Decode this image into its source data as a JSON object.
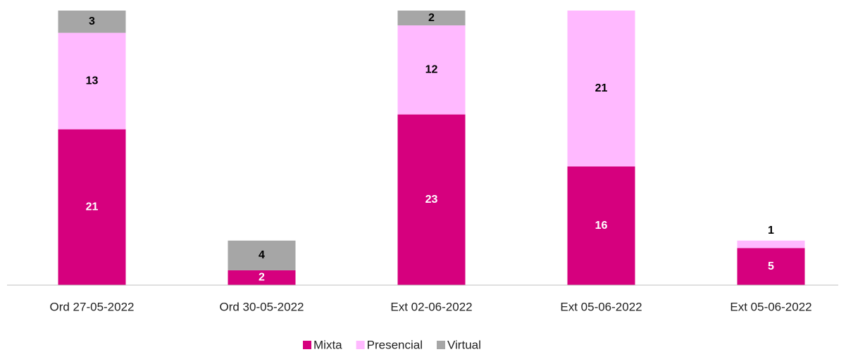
{
  "chart_data": {
    "type": "stacked_bar",
    "categories": [
      "Ord 27-05-2022",
      "Ord 30-05-2022",
      "Ext 02-06-2022",
      "Ext 05-06-2022",
      "Ext 05-06-2022"
    ],
    "series": [
      {
        "name": "Mixta",
        "color": "#d6007e",
        "values": [
          21,
          2,
          23,
          16,
          5
        ]
      },
      {
        "name": "Presencial",
        "color": "#ffb9ff",
        "values": [
          13,
          null,
          12,
          21,
          1
        ]
      },
      {
        "name": "Virtual",
        "color": "#a6a6a6",
        "values": [
          3,
          4,
          2,
          null,
          null
        ]
      }
    ],
    "ylim": [
      0,
      37
    ],
    "legend": "bottom"
  }
}
